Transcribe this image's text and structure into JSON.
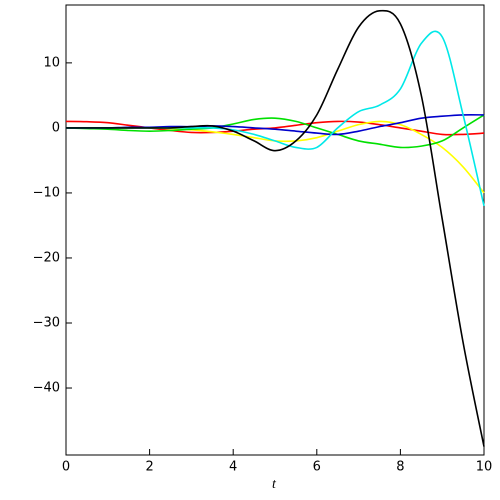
{
  "chart_data": {
    "type": "line",
    "x_label": "t",
    "x": [
      0,
      0.5,
      1,
      1.5,
      2,
      2.5,
      3,
      3.5,
      4,
      4.5,
      5,
      5.5,
      6,
      6.5,
      7,
      7.5,
      8,
      8.5,
      9,
      9.5,
      10
    ],
    "series": [
      {
        "color": "#ff0000",
        "values": [
          1,
          0.95,
          0.8,
          0.4,
          0,
          -0.4,
          -0.7,
          -0.7,
          -0.5,
          -0.2,
          0,
          0.4,
          0.8,
          1,
          0.9,
          0.5,
          0,
          -0.5,
          -1,
          -1,
          -0.8
        ]
      },
      {
        "color": "#ffff00",
        "values": [
          0,
          0,
          0,
          0,
          0,
          -0.1,
          -0.3,
          -0.6,
          -1,
          -1.5,
          -2,
          -2,
          -1.5,
          -0.5,
          0.5,
          1,
          0.5,
          -1,
          -3,
          -6,
          -10
        ]
      },
      {
        "color": "#00e000",
        "values": [
          0,
          -0.1,
          -0.2,
          -0.4,
          -0.5,
          -0.4,
          -0.2,
          0,
          0.6,
          1.3,
          1.5,
          1,
          0,
          -1,
          -2,
          -2.5,
          -3,
          -2.8,
          -2,
          0,
          2
        ]
      },
      {
        "color": "#0000cc",
        "values": [
          0,
          0,
          0,
          0.1,
          0.1,
          0.2,
          0.2,
          0.3,
          0.2,
          0,
          -0.2,
          -0.5,
          -0.8,
          -1,
          -0.5,
          0.2,
          0.8,
          1.5,
          1.8,
          2,
          2
        ]
      },
      {
        "color": "#00e8e8",
        "values": [
          0,
          0,
          0,
          0,
          0,
          0,
          0,
          0,
          -0.3,
          -1,
          -2,
          -3,
          -3,
          0,
          2.5,
          3.5,
          6,
          13,
          14,
          2,
          -12
        ]
      },
      {
        "color": "#000000",
        "values": [
          0,
          0,
          0,
          0,
          0,
          0,
          0.2,
          0.3,
          -0.5,
          -2,
          -3.5,
          -2,
          2,
          9,
          15.5,
          18,
          16,
          5,
          -14,
          -33,
          -49
        ]
      }
    ],
    "xlim": [
      0,
      10
    ],
    "ylim": [
      -50.3,
      18.9
    ],
    "xticks": [
      0,
      2,
      4,
      6,
      8,
      10
    ],
    "yticks": [
      10,
      0,
      {
        "value": -10,
        "label": "−10"
      },
      {
        "value": -20,
        "label": "−20"
      },
      {
        "value": -30,
        "label": "−30"
      },
      {
        "value": -40,
        "label": "−40"
      }
    ]
  }
}
